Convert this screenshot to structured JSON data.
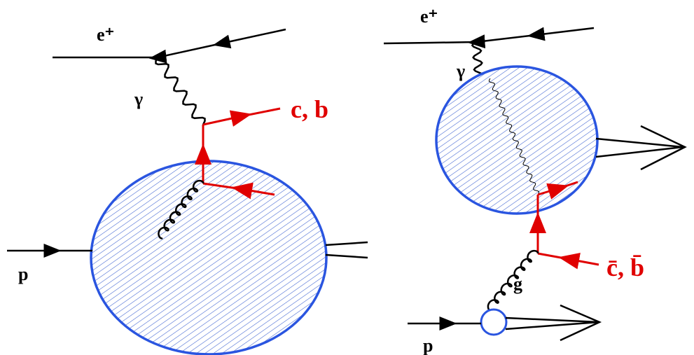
{
  "left_diagram": {
    "positron_label": "e⁺",
    "photon_label": "γ",
    "quark_label": "c, b",
    "proton_label": "p"
  },
  "right_diagram": {
    "positron_label": "e⁺",
    "photon_label": "γ",
    "quark_label": "c̄, b̄",
    "gluon_label": "g",
    "proton_label": "p"
  }
}
